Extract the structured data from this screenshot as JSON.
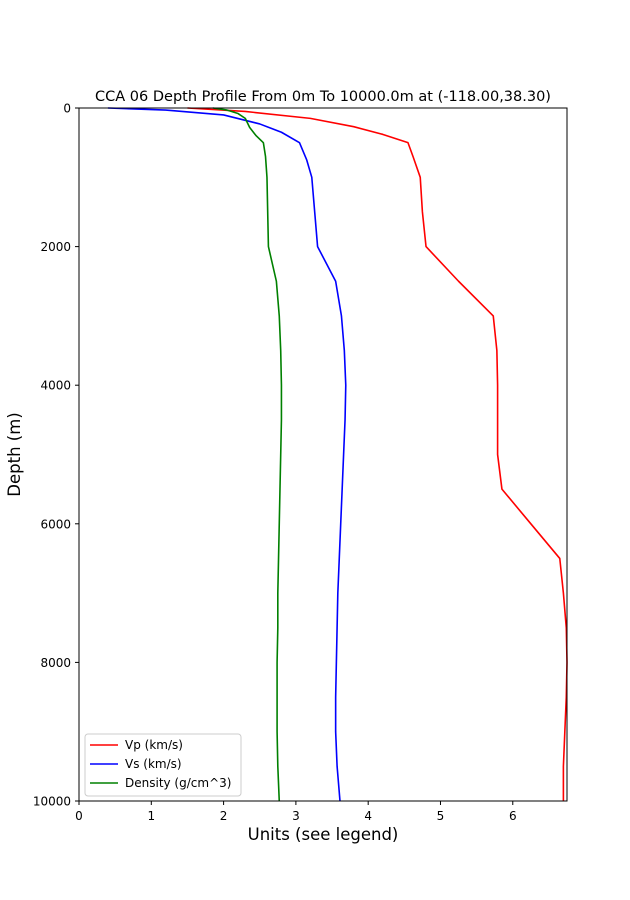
{
  "chart_data": {
    "type": "line",
    "title": "CCA 06 Depth Profile From 0m To 10000.0m at (-118.00,38.30)",
    "xlabel": "Units (see legend)",
    "ylabel": "Depth (m)",
    "xlim": [
      0,
      6.75
    ],
    "ylim": [
      0,
      10000
    ],
    "y_inverted": true,
    "x_ticks": [
      0,
      1,
      2,
      3,
      4,
      5,
      6
    ],
    "y_ticks": [
      0,
      2000,
      4000,
      6000,
      8000,
      10000
    ],
    "grid": false,
    "legend_position": "lower-left",
    "series": [
      {
        "name": "Vp (km/s)",
        "color": "#ff0000",
        "points": [
          [
            1.5,
            0
          ],
          [
            2.3,
            50
          ],
          [
            3.2,
            150
          ],
          [
            3.8,
            270
          ],
          [
            4.2,
            380
          ],
          [
            4.55,
            500
          ],
          [
            4.62,
            700
          ],
          [
            4.72,
            1000
          ],
          [
            4.75,
            1500
          ],
          [
            4.8,
            2000
          ],
          [
            5.25,
            2500
          ],
          [
            5.73,
            3000
          ],
          [
            5.78,
            3500
          ],
          [
            5.79,
            4000
          ],
          [
            5.79,
            4500
          ],
          [
            5.79,
            5000
          ],
          [
            5.85,
            5500
          ],
          [
            6.25,
            6000
          ],
          [
            6.65,
            6500
          ],
          [
            6.7,
            7000
          ],
          [
            6.74,
            7500
          ],
          [
            6.75,
            8000
          ],
          [
            6.74,
            8500
          ],
          [
            6.72,
            9000
          ],
          [
            6.7,
            9500
          ],
          [
            6.7,
            10000
          ]
        ]
      },
      {
        "name": "Vs (km/s)",
        "color": "#0000ff",
        "points": [
          [
            0.4,
            0
          ],
          [
            1.2,
            30
          ],
          [
            2.0,
            100
          ],
          [
            2.5,
            230
          ],
          [
            2.8,
            350
          ],
          [
            3.05,
            500
          ],
          [
            3.15,
            750
          ],
          [
            3.22,
            1000
          ],
          [
            3.26,
            1500
          ],
          [
            3.3,
            2000
          ],
          [
            3.55,
            2500
          ],
          [
            3.63,
            3000
          ],
          [
            3.67,
            3500
          ],
          [
            3.69,
            4000
          ],
          [
            3.68,
            4500
          ],
          [
            3.66,
            5000
          ],
          [
            3.64,
            5500
          ],
          [
            3.62,
            6000
          ],
          [
            3.6,
            6500
          ],
          [
            3.58,
            7000
          ],
          [
            3.57,
            7500
          ],
          [
            3.56,
            8000
          ],
          [
            3.55,
            8500
          ],
          [
            3.55,
            9000
          ],
          [
            3.57,
            9500
          ],
          [
            3.61,
            10000
          ]
        ]
      },
      {
        "name": "Density (g/cm^3)",
        "color": "#008000",
        "points": [
          [
            1.85,
            0
          ],
          [
            2.05,
            30
          ],
          [
            2.2,
            80
          ],
          [
            2.3,
            150
          ],
          [
            2.36,
            280
          ],
          [
            2.45,
            400
          ],
          [
            2.55,
            500
          ],
          [
            2.58,
            700
          ],
          [
            2.6,
            1000
          ],
          [
            2.61,
            1500
          ],
          [
            2.62,
            2000
          ],
          [
            2.73,
            2500
          ],
          [
            2.77,
            3000
          ],
          [
            2.79,
            3500
          ],
          [
            2.8,
            4000
          ],
          [
            2.8,
            4500
          ],
          [
            2.79,
            5000
          ],
          [
            2.78,
            5500
          ],
          [
            2.77,
            6000
          ],
          [
            2.76,
            6500
          ],
          [
            2.75,
            7000
          ],
          [
            2.75,
            7500
          ],
          [
            2.74,
            8000
          ],
          [
            2.74,
            8500
          ],
          [
            2.74,
            9000
          ],
          [
            2.75,
            9500
          ],
          [
            2.77,
            10000
          ]
        ]
      }
    ]
  }
}
